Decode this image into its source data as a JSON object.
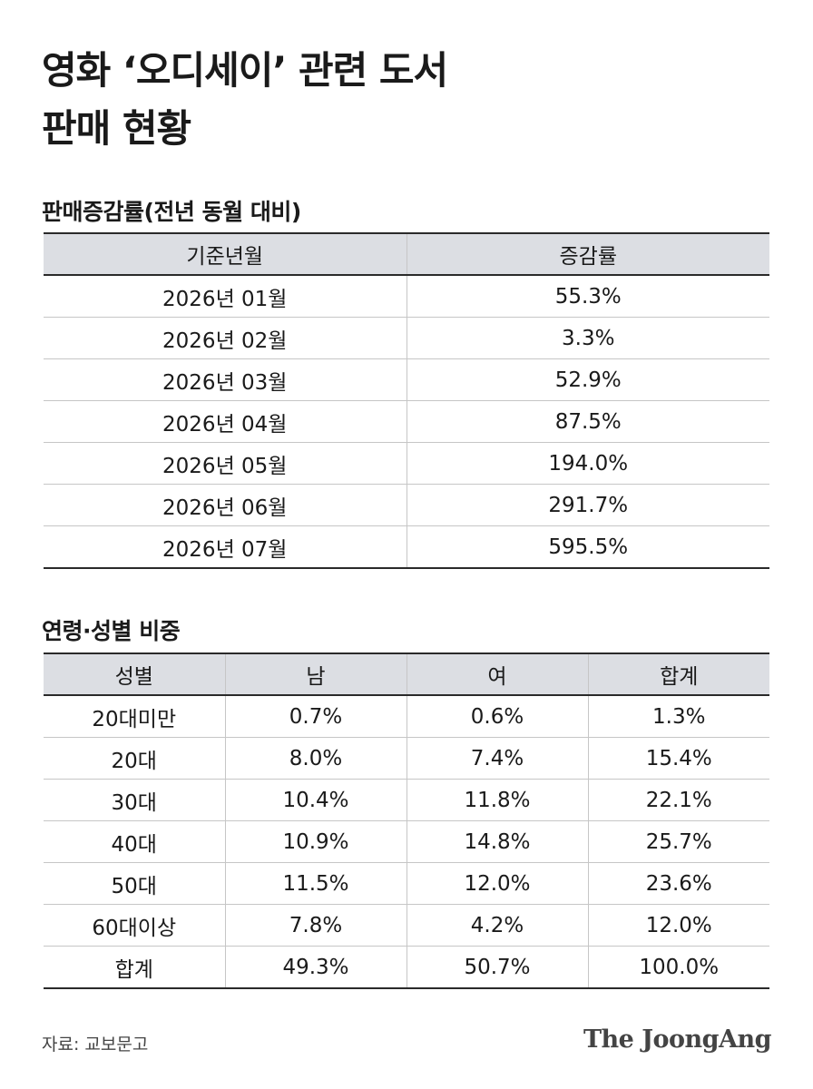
{
  "title": [
    "영화 ‘오디세이’ 관련 도서",
    "판매 현황"
  ],
  "sales_growth": {
    "title": "판매증감률(전년 동월 대비)",
    "headers": [
      "기준년월",
      "증감률"
    ],
    "rows": [
      [
        "2026년 01월",
        "55.3%"
      ],
      [
        "2026년 02월",
        "3.3%"
      ],
      [
        "2026년 03월",
        "52.9%"
      ],
      [
        "2026년 04월",
        "87.5%"
      ],
      [
        "2026년 05월",
        "194.0%"
      ],
      [
        "2026년 06월",
        "291.7%"
      ],
      [
        "2026년 07월",
        "595.5%"
      ]
    ]
  },
  "demographics": {
    "title": "연령·성별 비중",
    "headers": [
      "성별",
      "남",
      "여",
      "합계"
    ],
    "rows": [
      [
        "20대미만",
        "0.7%",
        "0.6%",
        "1.3%"
      ],
      [
        "20대",
        "8.0%",
        "7.4%",
        "15.4%"
      ],
      [
        "30대",
        "10.4%",
        "11.8%",
        "22.1%"
      ],
      [
        "40대",
        "10.9%",
        "14.8%",
        "25.7%"
      ],
      [
        "50대",
        "11.5%",
        "12.0%",
        "23.6%"
      ],
      [
        "60대이상",
        "7.8%",
        "4.2%",
        "12.0%"
      ],
      [
        "합계",
        "49.3%",
        "50.7%",
        "100.0%"
      ]
    ]
  },
  "footer": {
    "source": "자료: 교보문고",
    "logo": "The JoongAng"
  }
}
